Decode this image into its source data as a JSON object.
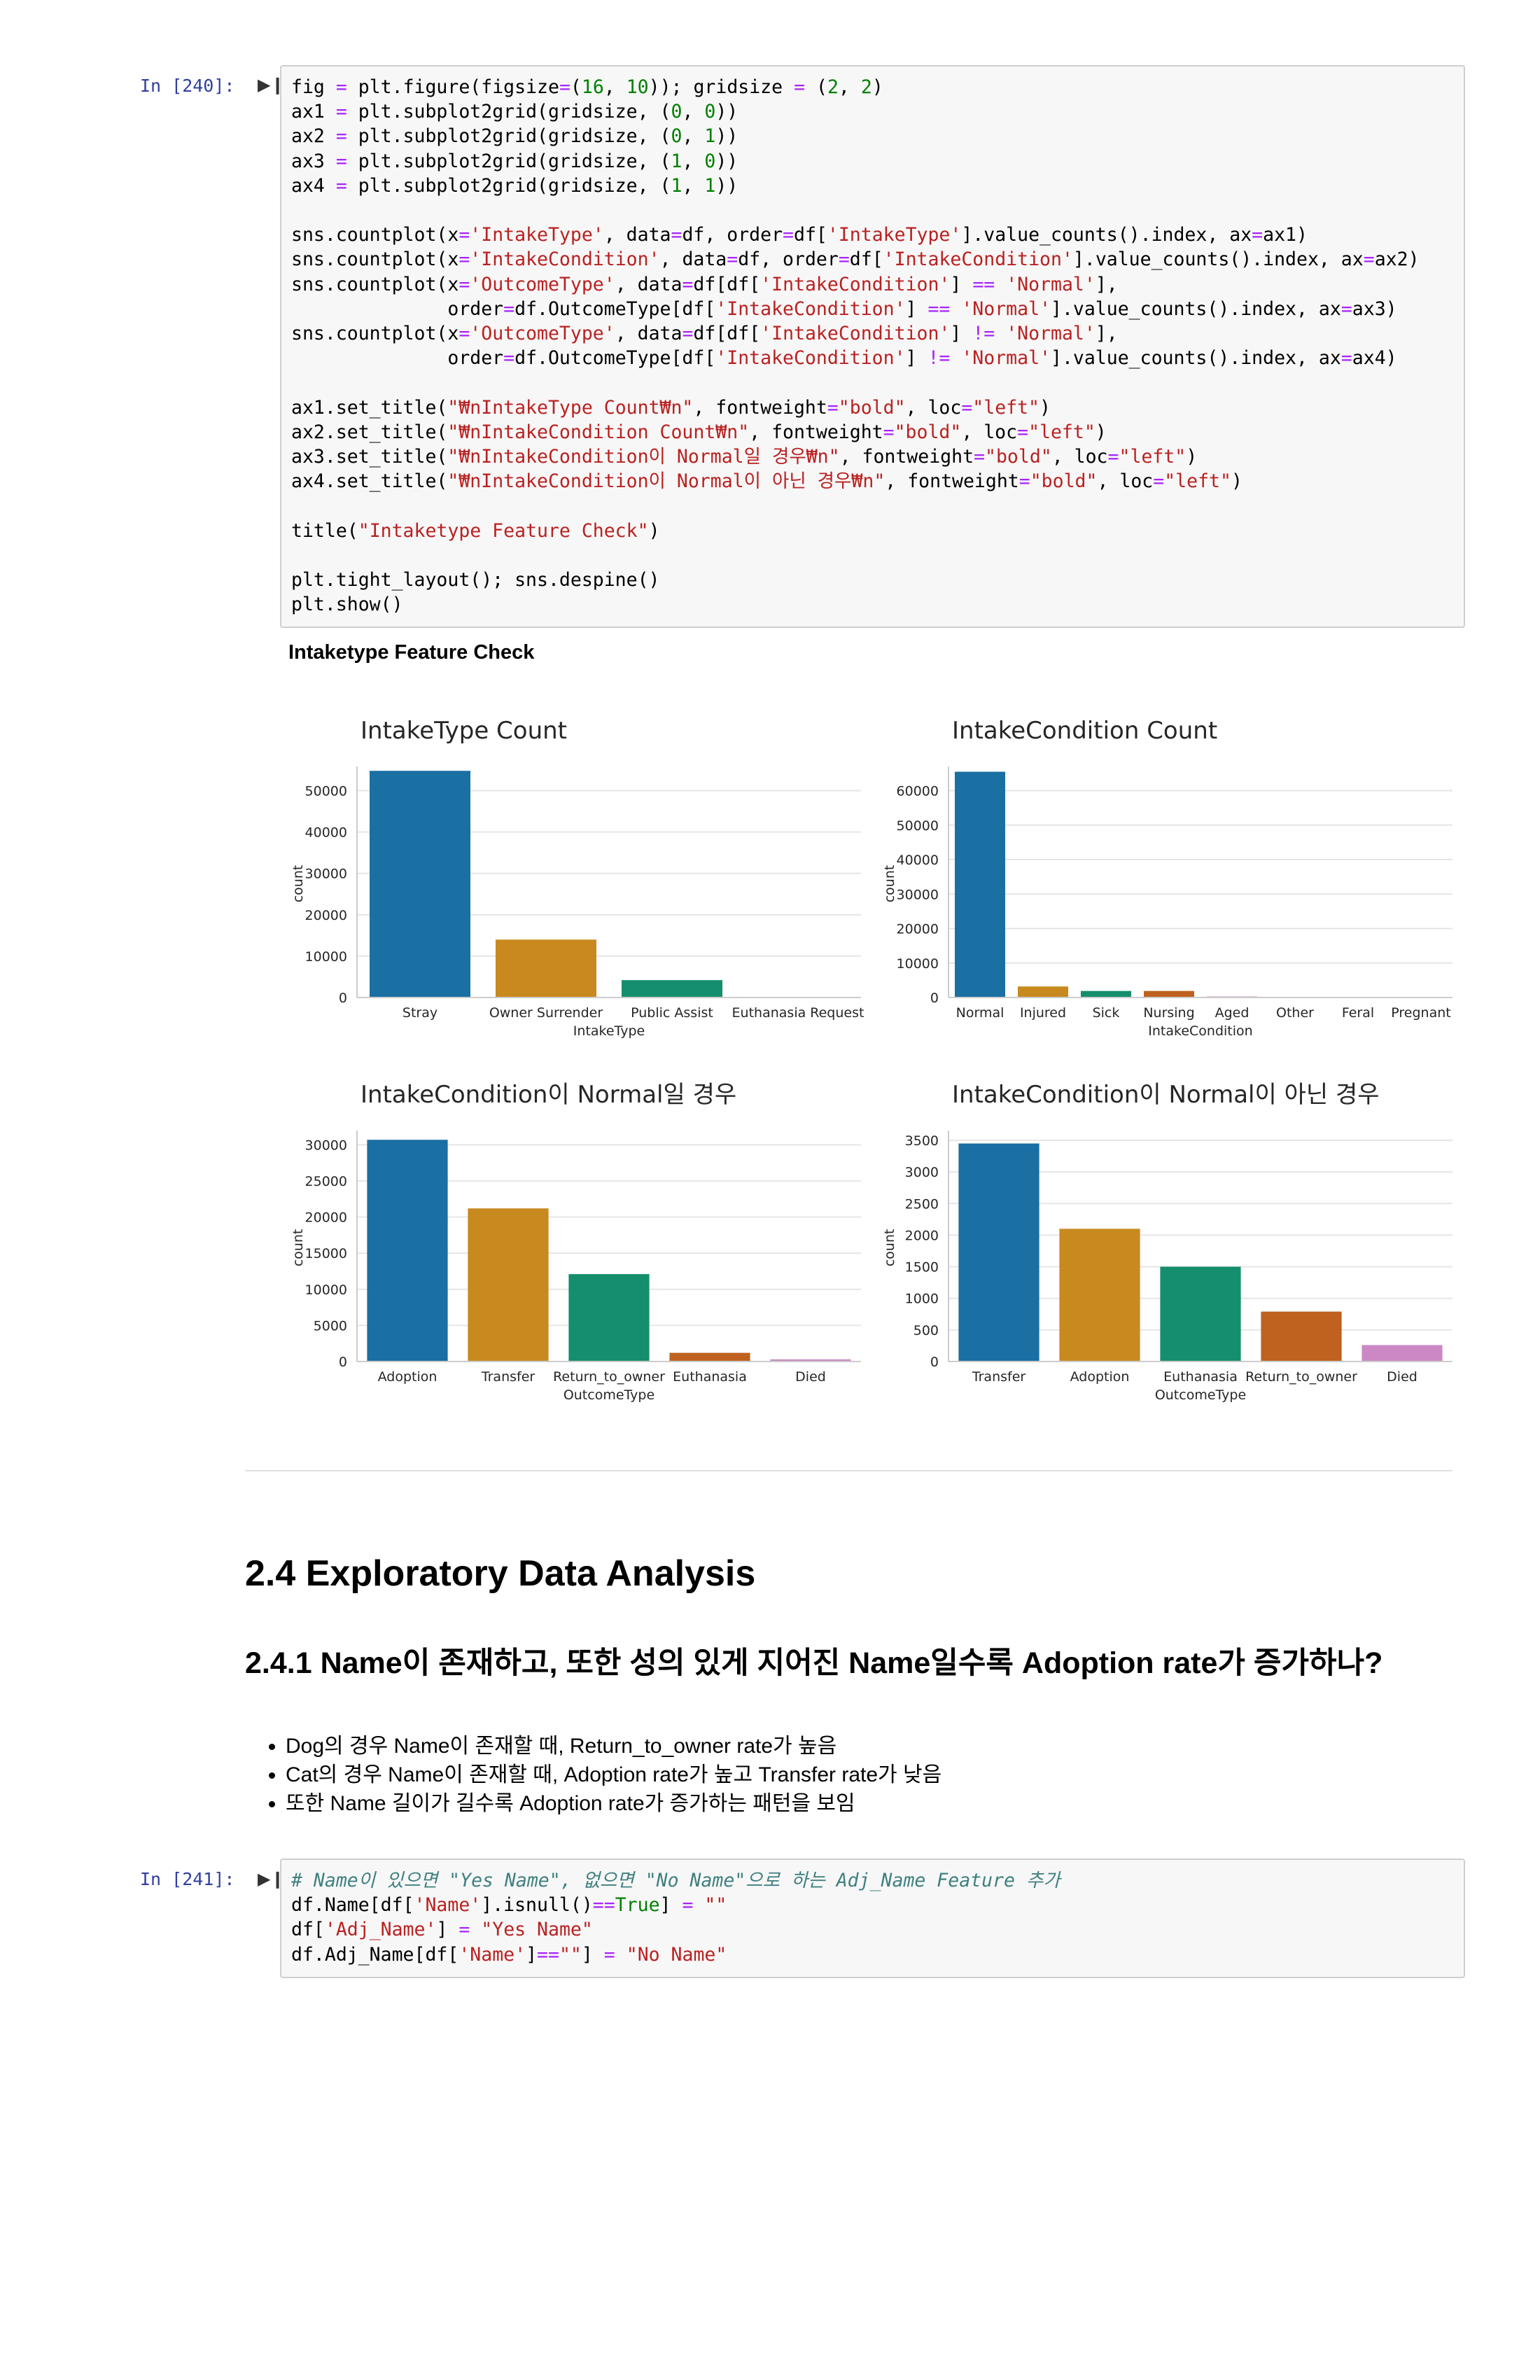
{
  "cell240": {
    "prompt": "In [240]:",
    "run_icon": "run-indicator-icon",
    "lines": [
      [
        [
          "fig "
        ],
        [
          "=",
          "o"
        ],
        [
          " plt.figure(figsize"
        ],
        [
          "=",
          "o"
        ],
        [
          "("
        ],
        [
          "16",
          "n"
        ],
        [
          ", "
        ],
        [
          "10",
          "n"
        ],
        [
          ")); gridsize "
        ],
        [
          "=",
          "o"
        ],
        [
          " ("
        ],
        [
          "2",
          "n"
        ],
        [
          ", "
        ],
        [
          "2",
          "n"
        ],
        [
          ")"
        ]
      ],
      [
        [
          "ax1 "
        ],
        [
          "=",
          "o"
        ],
        [
          " plt.subplot2grid(gridsize, ("
        ],
        [
          "0",
          "n"
        ],
        [
          ", "
        ],
        [
          "0",
          "n"
        ],
        [
          "))"
        ]
      ],
      [
        [
          "ax2 "
        ],
        [
          "=",
          "o"
        ],
        [
          " plt.subplot2grid(gridsize, ("
        ],
        [
          "0",
          "n"
        ],
        [
          ", "
        ],
        [
          "1",
          "n"
        ],
        [
          "))"
        ]
      ],
      [
        [
          "ax3 "
        ],
        [
          "=",
          "o"
        ],
        [
          " plt.subplot2grid(gridsize, ("
        ],
        [
          "1",
          "n"
        ],
        [
          ", "
        ],
        [
          "0",
          "n"
        ],
        [
          "))"
        ]
      ],
      [
        [
          "ax4 "
        ],
        [
          "=",
          "o"
        ],
        [
          " plt.subplot2grid(gridsize, ("
        ],
        [
          "1",
          "n"
        ],
        [
          ", "
        ],
        [
          "1",
          "n"
        ],
        [
          "))"
        ]
      ],
      [],
      [
        [
          "sns.countplot(x"
        ],
        [
          "=",
          "o"
        ],
        [
          "'IntakeType'",
          "s"
        ],
        [
          ", data"
        ],
        [
          "=",
          "o"
        ],
        [
          "df, order"
        ],
        [
          "=",
          "o"
        ],
        [
          "df["
        ],
        [
          "'IntakeType'",
          "s"
        ],
        [
          "].value_counts().index, ax"
        ],
        [
          "=",
          "o"
        ],
        [
          "ax1)"
        ]
      ],
      [
        [
          "sns.countplot(x"
        ],
        [
          "=",
          "o"
        ],
        [
          "'IntakeCondition'",
          "s"
        ],
        [
          ", data"
        ],
        [
          "=",
          "o"
        ],
        [
          "df, order"
        ],
        [
          "=",
          "o"
        ],
        [
          "df["
        ],
        [
          "'IntakeCondition'",
          "s"
        ],
        [
          "].value_counts().index, ax"
        ],
        [
          "=",
          "o"
        ],
        [
          "ax2)"
        ]
      ],
      [
        [
          "sns.countplot(x"
        ],
        [
          "=",
          "o"
        ],
        [
          "'OutcomeType'",
          "s"
        ],
        [
          ", data"
        ],
        [
          "=",
          "o"
        ],
        [
          "df[df["
        ],
        [
          "'IntakeCondition'",
          "s"
        ],
        [
          "] "
        ],
        [
          "==",
          "o"
        ],
        [
          " "
        ],
        [
          "'Normal'",
          "s"
        ],
        [
          "],"
        ]
      ],
      [
        [
          "              order"
        ],
        [
          "=",
          "o"
        ],
        [
          "df.OutcomeType[df["
        ],
        [
          "'IntakeCondition'",
          "s"
        ],
        [
          "] "
        ],
        [
          "==",
          "o"
        ],
        [
          " "
        ],
        [
          "'Normal'",
          "s"
        ],
        [
          "].value_counts().index, ax"
        ],
        [
          "=",
          "o"
        ],
        [
          "ax3)"
        ]
      ],
      [
        [
          "sns.countplot(x"
        ],
        [
          "=",
          "o"
        ],
        [
          "'OutcomeType'",
          "s"
        ],
        [
          ", data"
        ],
        [
          "=",
          "o"
        ],
        [
          "df[df["
        ],
        [
          "'IntakeCondition'",
          "s"
        ],
        [
          "] "
        ],
        [
          "!=",
          "o"
        ],
        [
          " "
        ],
        [
          "'Normal'",
          "s"
        ],
        [
          "],"
        ]
      ],
      [
        [
          "              order"
        ],
        [
          "=",
          "o"
        ],
        [
          "df.OutcomeType[df["
        ],
        [
          "'IntakeCondition'",
          "s"
        ],
        [
          "] "
        ],
        [
          "!=",
          "o"
        ],
        [
          " "
        ],
        [
          "'Normal'",
          "s"
        ],
        [
          "].value_counts().index, ax"
        ],
        [
          "=",
          "o"
        ],
        [
          "ax4)"
        ]
      ],
      [],
      [
        [
          "ax1.set_title("
        ],
        [
          "\"₩nIntakeType Count₩n\"",
          "s"
        ],
        [
          ", fontweight"
        ],
        [
          "=",
          "o"
        ],
        [
          "\"bold\"",
          "s"
        ],
        [
          ", loc"
        ],
        [
          "=",
          "o"
        ],
        [
          "\"left\"",
          "s"
        ],
        [
          ")"
        ]
      ],
      [
        [
          "ax2.set_title("
        ],
        [
          "\"₩nIntakeCondition Count₩n\"",
          "s"
        ],
        [
          ", fontweight"
        ],
        [
          "=",
          "o"
        ],
        [
          "\"bold\"",
          "s"
        ],
        [
          ", loc"
        ],
        [
          "=",
          "o"
        ],
        [
          "\"left\"",
          "s"
        ],
        [
          ")"
        ]
      ],
      [
        [
          "ax3.set_title("
        ],
        [
          "\"₩nIntakeCondition이 Normal일 경우₩n\"",
          "s"
        ],
        [
          ", fontweight"
        ],
        [
          "=",
          "o"
        ],
        [
          "\"bold\"",
          "s"
        ],
        [
          ", loc"
        ],
        [
          "=",
          "o"
        ],
        [
          "\"left\"",
          "s"
        ],
        [
          ")"
        ]
      ],
      [
        [
          "ax4.set_title("
        ],
        [
          "\"₩nIntakeCondition이 Normal이 아닌 경우₩n\"",
          "s"
        ],
        [
          ", fontweight"
        ],
        [
          "=",
          "o"
        ],
        [
          "\"bold\"",
          "s"
        ],
        [
          ", loc"
        ],
        [
          "=",
          "o"
        ],
        [
          "\"left\"",
          "s"
        ],
        [
          ")"
        ]
      ],
      [],
      [
        [
          "title("
        ],
        [
          "\"Intaketype Feature Check\"",
          "s"
        ],
        [
          ")"
        ]
      ],
      [],
      [
        [
          "plt.tight_layout(); sns.despine()"
        ]
      ],
      [
        [
          "plt.show()"
        ]
      ]
    ]
  },
  "output_title": "Intaketype Feature Check",
  "colors": {
    "blue": "#1a6fa3",
    "orange": "#c8891f",
    "green": "#148e6c",
    "burnt": "#bf611f",
    "pink": "#cc88c4",
    "gridline": "#e6e6e6",
    "axis": "#cccccc"
  },
  "chart_data": [
    {
      "type": "bar",
      "title": "IntakeType Count",
      "xlabel": "IntakeType",
      "ylabel": "count",
      "categories": [
        "Stray",
        "Owner Surrender",
        "Public Assist",
        "Euthanasia Request"
      ],
      "values": [
        54800,
        14000,
        4200,
        150
      ],
      "ylim": [
        0,
        55000
      ],
      "yticks": [
        "0",
        "10000",
        "20000",
        "30000",
        "40000",
        "50000"
      ],
      "ytick_values": [
        0,
        10000,
        20000,
        30000,
        40000,
        50000
      ],
      "bar_colors": [
        "#1a6fa3",
        "#c8891f",
        "#148e6c",
        "#bf611f"
      ],
      "grid": true
    },
    {
      "type": "bar",
      "title": "IntakeCondition Count",
      "xlabel": "IntakeCondition",
      "ylabel": "count",
      "categories": [
        "Normal",
        "Injured",
        "Sick",
        "Nursing",
        "Aged",
        "Other",
        "Feral",
        "Pregnant"
      ],
      "values": [
        65500,
        3200,
        1900,
        1900,
        300,
        150,
        80,
        50
      ],
      "ylim": [
        0,
        66000
      ],
      "yticks": [
        "0",
        "10000",
        "20000",
        "30000",
        "40000",
        "50000",
        "60000"
      ],
      "ytick_values": [
        0,
        10000,
        20000,
        30000,
        40000,
        50000,
        60000
      ],
      "bar_colors": [
        "#1a6fa3",
        "#c8891f",
        "#148e6c",
        "#bf611f",
        "#cc88c4",
        "#b08e66",
        "#e2a3cc",
        "#9a9a9a"
      ],
      "grid": true
    },
    {
      "type": "bar",
      "title": "IntakeCondition이 Normal일 경우",
      "xlabel": "OutcomeType",
      "ylabel": "count",
      "categories": [
        "Adoption",
        "Transfer",
        "Return_to_owner",
        "Euthanasia",
        "Died"
      ],
      "values": [
        30700,
        21200,
        12100,
        1200,
        300
      ],
      "ylim": [
        0,
        31500
      ],
      "yticks": [
        "0",
        "5000",
        "10000",
        "15000",
        "20000",
        "25000",
        "30000"
      ],
      "ytick_values": [
        0,
        5000,
        10000,
        15000,
        20000,
        25000,
        30000
      ],
      "bar_colors": [
        "#1a6fa3",
        "#c8891f",
        "#148e6c",
        "#bf611f",
        "#cc88c4"
      ],
      "grid": true
    },
    {
      "type": "bar",
      "title": "IntakeCondition이 Normal이 아닌 경우",
      "xlabel": "OutcomeType",
      "ylabel": "count",
      "categories": [
        "Transfer",
        "Adoption",
        "Euthanasia",
        "Return_to_owner",
        "Died"
      ],
      "values": [
        3450,
        2100,
        1500,
        790,
        260
      ],
      "ylim": [
        0,
        3600
      ],
      "yticks": [
        "0",
        "500",
        "1000",
        "1500",
        "2000",
        "2500",
        "3000",
        "3500"
      ],
      "ytick_values": [
        0,
        500,
        1000,
        1500,
        2000,
        2500,
        3000,
        3500
      ],
      "bar_colors": [
        "#1a6fa3",
        "#c8891f",
        "#148e6c",
        "#bf611f",
        "#cc88c4"
      ],
      "grid": true
    }
  ],
  "section": {
    "h2": "2.4 Exploratory Data Analysis",
    "h3": "2.4.1 Name이 존재하고, 또한 성의 있게 지어진 Name일수록 Adoption rate가 증가하나?",
    "bullets": [
      "Dog의 경우 Name이 존재할 때, Return_to_owner rate가 높음",
      "Cat의 경우 Name이 존재할 때, Adoption rate가 높고 Transfer rate가 낮음",
      "또한 Name 길이가 길수록 Adoption rate가 증가하는 패턴을 보임"
    ]
  },
  "cell241": {
    "prompt": "In [241]:",
    "lines": [
      [
        [
          "# Name이 있으면 \"Yes Name\", 없으면 \"No Name\"으로 하는 Adj_Name Feature 추가",
          "c"
        ]
      ],
      [
        [
          "df.Name[df["
        ],
        [
          "'Name'",
          "s"
        ],
        [
          "].isnull()"
        ],
        [
          "==",
          "o"
        ],
        [
          "True",
          "n"
        ],
        [
          "] "
        ],
        [
          "=",
          "o"
        ],
        [
          " "
        ],
        [
          "\"\"",
          "s"
        ]
      ],
      [
        [
          "df["
        ],
        [
          "'Adj_Name'",
          "s"
        ],
        [
          "] "
        ],
        [
          "=",
          "o"
        ],
        [
          " "
        ],
        [
          "\"Yes Name\"",
          "s"
        ]
      ],
      [
        [
          "df.Adj_Name[df["
        ],
        [
          "'Name'",
          "s"
        ],
        [
          "]"
        ],
        [
          "==",
          "o"
        ],
        [
          "\"\"",
          "s"
        ],
        [
          "] "
        ],
        [
          "=",
          "o"
        ],
        [
          " "
        ],
        [
          "\"No Name\"",
          "s"
        ]
      ]
    ]
  }
}
